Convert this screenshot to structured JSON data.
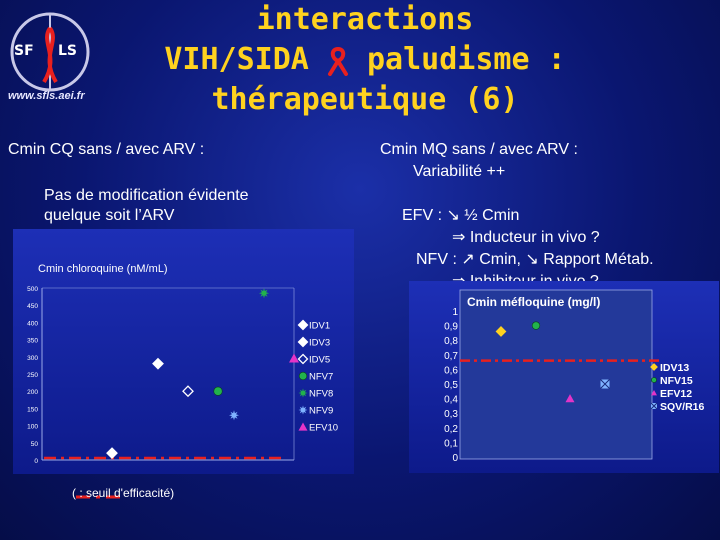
{
  "header": {
    "title_lines": [
      "interactions",
      "VIH/SIDA",
      "paludisme :",
      "thérapeutique (6)"
    ],
    "logo_text_left": "SF",
    "logo_text_right": "LS",
    "logo_url": "www.sfls.aei.fr"
  },
  "left": {
    "heading": "Cmin CQ sans / avec ARV :",
    "note_line1": "Pas de modification évidente",
    "note_line2": "quelque soit l’ARV"
  },
  "right": {
    "heading": "Cmin MQ sans / avec ARV :",
    "heading2": "Variabilité ++",
    "efv_line": "EFV : ↘ ½ Cmin",
    "efv_sub": "⇒ Inducteur in vivo ?",
    "nfv_line": "NFV : ↗ Cmin, ↘ Rapport Métab.",
    "nfv_sub": "⇒ Inhibiteur in vivo ?"
  },
  "footnote": "( : seuil d'efficacité)",
  "colors": {
    "title": "#ffd21f",
    "threshold": "#e8201e",
    "idv": "#ffffff",
    "nfv": "#22b24c",
    "efv": "#e334c7",
    "sqv": "#7fb2ff"
  },
  "chart_data": [
    {
      "type": "scatter",
      "title": "Cmin chloroquine (nM/mL)",
      "ylim": [
        0,
        500
      ],
      "yticks": [
        0,
        50,
        100,
        150,
        200,
        250,
        300,
        350,
        400,
        450,
        500
      ],
      "threshold": 0,
      "legend_position": "right",
      "series": [
        {
          "name": "IDV1",
          "marker": "diamond",
          "color": "#ffffff",
          "y": 20
        },
        {
          "name": "IDV3",
          "marker": "diamond",
          "color": "#ffffff",
          "y": 280
        },
        {
          "name": "IDV5",
          "marker": "diamond-open",
          "color": "#ffffff",
          "y": 200
        },
        {
          "name": "NFV7",
          "marker": "circle",
          "color": "#22b24c",
          "y": 200
        },
        {
          "name": "NFV8",
          "marker": "star",
          "color": "#22b24c",
          "y": 485
        },
        {
          "name": "NFV9",
          "marker": "star",
          "color": "#7fb2ff",
          "y": 130
        },
        {
          "name": "EFV10",
          "marker": "triangle",
          "color": "#e334c7",
          "y": 295
        }
      ]
    },
    {
      "type": "scatter",
      "title": "Cmin méfloquine (mg/l)",
      "ylim": [
        0,
        1
      ],
      "yticks": [
        "0",
        "0,1",
        "0,2",
        "0,3",
        "0,4",
        "0,5",
        "0,6",
        "0,7",
        "0,8",
        "0,9",
        "1"
      ],
      "threshold": 0.66,
      "legend_position": "right",
      "series": [
        {
          "name": "IDV13",
          "marker": "diamond",
          "color": "#ffd21f",
          "y": 0.86
        },
        {
          "name": "NFV15",
          "marker": "circle",
          "color": "#22b24c",
          "y": 0.9
        },
        {
          "name": "EFV12",
          "marker": "triangle",
          "color": "#e334c7",
          "y": 0.4
        },
        {
          "name": "SQV/R16",
          "marker": "square-x",
          "color": "#7fb2ff",
          "y": 0.5
        }
      ]
    }
  ]
}
